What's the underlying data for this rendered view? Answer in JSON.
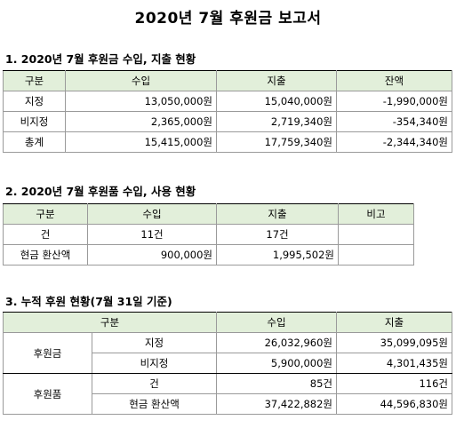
{
  "title": "2020년 7월 후원금 보고서",
  "section1": {
    "heading": "1. 2020년 7월 후원금 수입, 지출 현황",
    "headers": [
      "구분",
      "수입",
      "지출",
      "잔액"
    ],
    "rows": [
      [
        "지정",
        "13,050,000원",
        "15,040,000원",
        "-1,990,000원"
      ],
      [
        "비지정",
        "2,365,000원",
        "2,719,340원",
        "-354,340원"
      ],
      [
        "총계",
        "15,415,000원",
        "17,759,340원",
        "-2,344,340원"
      ]
    ]
  },
  "section2": {
    "heading": "2. 2020년 7월 후원품 수입, 사용 현황",
    "headers": [
      "구분",
      "수입",
      "지출",
      "비고"
    ],
    "rows": [
      [
        "건",
        "11건",
        "17건",
        ""
      ],
      [
        "현금 환산액",
        "900,000원",
        "1,995,502원",
        ""
      ]
    ]
  },
  "section3": {
    "heading": "3. 누적 후원 현황(7월 31일 기준)",
    "headers": [
      "구분",
      "수입",
      "지출"
    ],
    "groups": [
      {
        "name": "후원금",
        "rows": [
          [
            "지정",
            "26,032,960원",
            "35,099,095원"
          ],
          [
            "비지정",
            "5,900,000원",
            "4,301,435원"
          ]
        ]
      },
      {
        "name": "후원품",
        "rows": [
          [
            "건",
            "85건",
            "116건"
          ],
          [
            "현금 환산액",
            "37,422,882원",
            "44,596,830원"
          ]
        ]
      }
    ]
  },
  "colors": {
    "header_bg": "#e2efda",
    "grid": "#9a9a9a",
    "border": "#000000"
  }
}
